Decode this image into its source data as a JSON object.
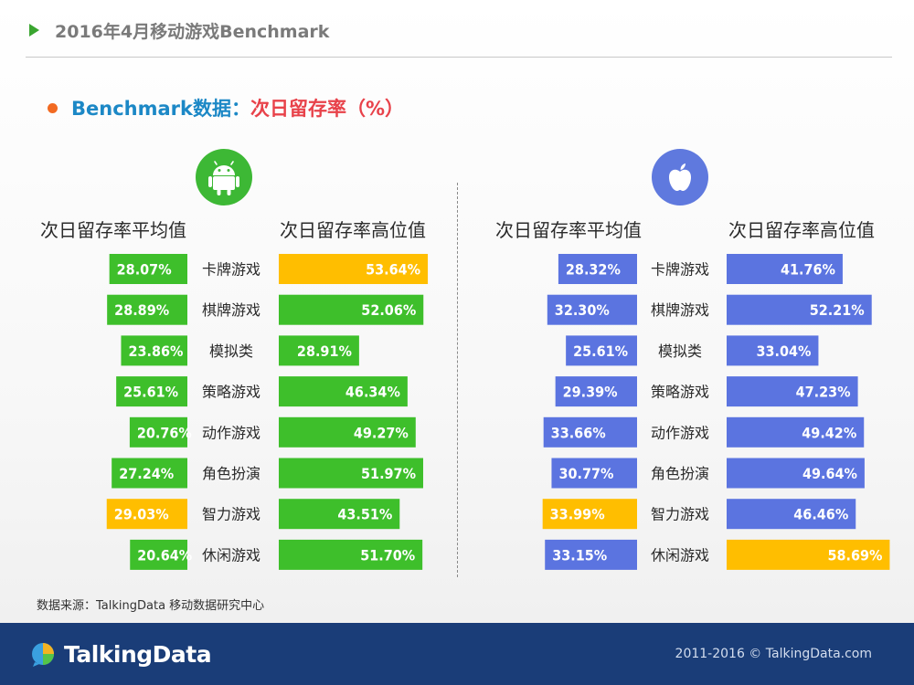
{
  "header": {
    "title": "2016年4月移动游戏Benchmark"
  },
  "subtitle": {
    "part1": "Benchmark数据：",
    "part2": "次日留存率（%）"
  },
  "platforms": {
    "android": {
      "icon": "android-icon",
      "color": "#3db835"
    },
    "ios": {
      "icon": "apple-icon",
      "color": "#5f79de"
    }
  },
  "columns": {
    "avg_label": "次日留存率平均值",
    "high_label": "次日留存率高位值"
  },
  "colors": {
    "android_bar": "#3ebf2b",
    "ios_bar": "#5b74e0",
    "highlight_bar": "#ffbe00"
  },
  "chart_data": [
    {
      "type": "bar",
      "platform": "Android",
      "categories": [
        "卡牌游戏",
        "棋牌游戏",
        "模拟类",
        "策略游戏",
        "动作游戏",
        "角色扮演",
        "智力游戏",
        "休闲游戏"
      ],
      "series": [
        {
          "name": "次日留存率平均值",
          "values": [
            28.07,
            28.89,
            23.86,
            25.61,
            20.76,
            27.24,
            29.03,
            20.64
          ],
          "labels": [
            "28.07%",
            "28.89%",
            "23.86%",
            "25.61%",
            "20.76%",
            "27.24%",
            "29.03%",
            "20.64%"
          ],
          "highlight_index": 6
        },
        {
          "name": "次日留存率高位值",
          "values": [
            53.64,
            52.06,
            28.91,
            46.34,
            49.27,
            51.97,
            43.51,
            51.7
          ],
          "labels": [
            "53.64%",
            "52.06%",
            "28.91%",
            "46.34%",
            "49.27%",
            "51.97%",
            "43.51%",
            "51.70%"
          ],
          "highlight_index": 0
        }
      ]
    },
    {
      "type": "bar",
      "platform": "iOS",
      "categories": [
        "卡牌游戏",
        "棋牌游戏",
        "模拟类",
        "策略游戏",
        "动作游戏",
        "角色扮演",
        "智力游戏",
        "休闲游戏"
      ],
      "series": [
        {
          "name": "次日留存率平均值",
          "values": [
            28.32,
            32.3,
            25.61,
            29.39,
            33.66,
            30.77,
            33.99,
            33.15
          ],
          "labels": [
            "28.32%",
            "32.30%",
            "25.61%",
            "29.39%",
            "33.66%",
            "30.77%",
            "33.99%",
            "33.15%"
          ],
          "highlight_index": 6
        },
        {
          "name": "次日留存率高位值",
          "values": [
            41.76,
            52.21,
            33.04,
            47.23,
            49.42,
            49.64,
            46.46,
            58.69
          ],
          "labels": [
            "41.76%",
            "52.21%",
            "33.04%",
            "47.23%",
            "49.42%",
            "49.64%",
            "46.46%",
            "58.69%"
          ],
          "highlight_index": 7
        }
      ]
    }
  ],
  "source": "数据来源：TalkingData 移动数据研究中心",
  "footer": {
    "logo_text": "TalkingData",
    "copyright": "2011-2016 © TalkingData.com"
  }
}
